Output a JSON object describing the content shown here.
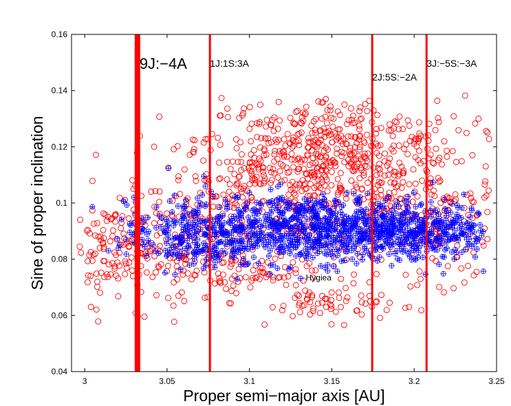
{
  "chart_data": {
    "type": "scatter",
    "title": "",
    "xlabel": "Proper semi−major axis [AU]",
    "ylabel": "Sine of proper inclination",
    "xlim": [
      2.992,
      3.25
    ],
    "ylim": [
      0.04,
      0.16
    ],
    "grid": false,
    "x_ticks": [
      {
        "value": 3.0,
        "label": "3"
      },
      {
        "value": 3.05,
        "label": "3.05"
      },
      {
        "value": 3.1,
        "label": "3.1"
      },
      {
        "value": 3.15,
        "label": "3.15"
      },
      {
        "value": 3.2,
        "label": "3.2"
      },
      {
        "value": 3.25,
        "label": "3.25"
      }
    ],
    "y_ticks": [
      {
        "value": 0.04,
        "label": "0.04"
      },
      {
        "value": 0.06,
        "label": "0.06"
      },
      {
        "value": 0.08,
        "label": "0.08"
      },
      {
        "value": 0.1,
        "label": "0.1"
      },
      {
        "value": 0.12,
        "label": "0.12"
      },
      {
        "value": 0.14,
        "label": "0.14"
      },
      {
        "value": 0.16,
        "label": "0.16"
      }
    ],
    "series": [
      {
        "marker": "circle",
        "color": "#ff0000",
        "clusters": [
          {
            "x": 3.135,
            "y": 0.105,
            "sx": 0.045,
            "sy": 0.012,
            "n": 550
          },
          {
            "x": 3.15,
            "y": 0.122,
            "sx": 0.04,
            "sy": 0.008,
            "n": 260
          },
          {
            "x": 3.05,
            "y": 0.084,
            "sx": 0.03,
            "sy": 0.011,
            "n": 180
          },
          {
            "x": 3.015,
            "y": 0.083,
            "sx": 0.015,
            "sy": 0.008,
            "n": 70
          },
          {
            "x": 3.22,
            "y": 0.092,
            "sx": 0.02,
            "sy": 0.01,
            "n": 130
          },
          {
            "x": 3.15,
            "y": 0.064,
            "sx": 0.02,
            "sy": 0.003,
            "n": 60
          },
          {
            "x": 3.1,
            "y": 0.075,
            "sx": 0.035,
            "sy": 0.005,
            "n": 90
          }
        ]
      },
      {
        "marker": "plus",
        "color": "#0000ff",
        "clusters": [
          {
            "x": 3.14,
            "y": 0.091,
            "sx": 0.045,
            "sy": 0.006,
            "n": 900
          },
          {
            "x": 3.065,
            "y": 0.088,
            "sx": 0.02,
            "sy": 0.006,
            "n": 180
          },
          {
            "x": 3.205,
            "y": 0.09,
            "sx": 0.02,
            "sy": 0.005,
            "n": 220
          }
        ]
      }
    ],
    "resonance_lines": [
      {
        "x": 3.032,
        "label": "9J:−4A",
        "thick": true
      },
      {
        "x": 3.076,
        "label": "1J:1S:3A",
        "thick": false
      },
      {
        "x": 3.1745,
        "label": "2J:5S:−2A",
        "thick": false
      },
      {
        "x": 3.2075,
        "label": "3J:−5S:−3A",
        "thick": false
      }
    ],
    "annotations": [
      {
        "text": "Hygiea",
        "x": 3.142,
        "y": 0.0725
      }
    ]
  }
}
